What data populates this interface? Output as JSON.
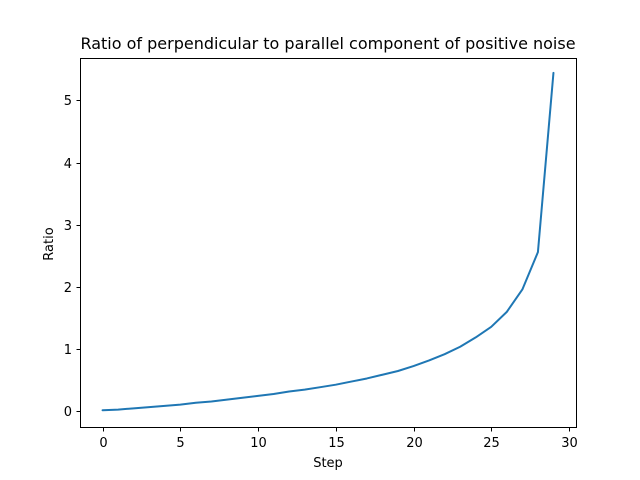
{
  "chart_data": {
    "type": "line",
    "title": "Ratio of perpendicular to parallel component of positive noise",
    "xlabel": "Step",
    "ylabel": "Ratio",
    "xlim": [
      -1.45,
      30.45
    ],
    "ylim": [
      -0.25,
      5.68
    ],
    "grid": false,
    "xticks": [
      0,
      5,
      10,
      15,
      20,
      25,
      30
    ],
    "xtick_labels": [
      "0",
      "5",
      "10",
      "15",
      "20",
      "25",
      "30"
    ],
    "yticks": [
      0,
      1,
      2,
      3,
      4,
      5
    ],
    "ytick_labels": [
      "0",
      "1",
      "2",
      "3",
      "4",
      "5"
    ],
    "series": [
      {
        "color": "#1f77b4",
        "x": [
          0,
          1,
          2,
          3,
          4,
          5,
          6,
          7,
          8,
          9,
          10,
          11,
          12,
          13,
          14,
          15,
          16,
          17,
          18,
          19,
          20,
          21,
          22,
          23,
          24,
          25,
          26,
          27,
          28,
          29
        ],
        "y": [
          0.02,
          0.03,
          0.05,
          0.07,
          0.09,
          0.11,
          0.14,
          0.16,
          0.19,
          0.22,
          0.25,
          0.28,
          0.32,
          0.35,
          0.39,
          0.43,
          0.48,
          0.53,
          0.59,
          0.65,
          0.73,
          0.82,
          0.92,
          1.04,
          1.19,
          1.36,
          1.6,
          1.96,
          2.56,
          5.44
        ]
      }
    ]
  }
}
